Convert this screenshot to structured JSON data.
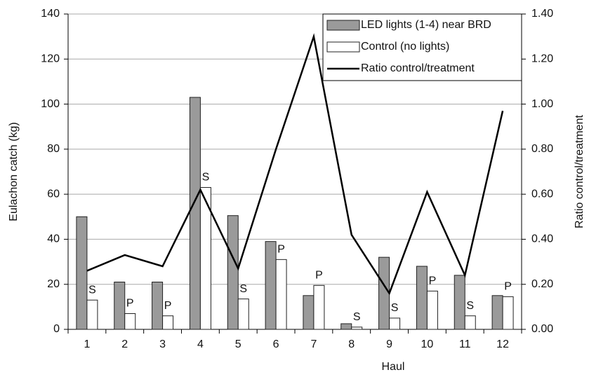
{
  "chart_data": {
    "type": "bar",
    "x_label": "Haul",
    "y_label": "Eulachon catch (kg)",
    "y2_label": "Ratio control/treatment",
    "categories": [
      "1",
      "2",
      "3",
      "4",
      "5",
      "6",
      "7",
      "8",
      "9",
      "10",
      "11",
      "12"
    ],
    "series": [
      {
        "name": "LED lights (1-4) near BRD",
        "type": "bar",
        "color": "#9a9a9a",
        "values": [
          50,
          21,
          21,
          103,
          50.5,
          39,
          15,
          2.5,
          32,
          28,
          24,
          15
        ]
      },
      {
        "name": "Control (no lights)",
        "type": "bar",
        "color": "#ffffff",
        "values": [
          13,
          7,
          6,
          63,
          13.5,
          31,
          19.5,
          1,
          5,
          17,
          6,
          14.5
        ],
        "annotations": [
          "S",
          "P",
          "P",
          "S",
          "S",
          "P",
          "P",
          "S",
          "S",
          "P",
          "S",
          "P"
        ]
      },
      {
        "name": "Ratio control/treatment",
        "type": "line",
        "axis": "y2",
        "color": "#000000",
        "values": [
          0.26,
          0.33,
          0.28,
          0.62,
          0.27,
          0.8,
          1.3,
          0.42,
          0.16,
          0.61,
          0.24,
          0.97
        ]
      }
    ],
    "ylim": [
      0,
      140
    ],
    "yticks": [
      0,
      20,
      40,
      60,
      80,
      100,
      120,
      140
    ],
    "y2lim": [
      0,
      1.4
    ],
    "y2ticks": [
      {
        "value": 0,
        "label": "0.00"
      },
      {
        "value": 0.2,
        "label": "0.20"
      },
      {
        "value": 0.4,
        "label": "0.40"
      },
      {
        "value": 0.6,
        "label": "0.60"
      },
      {
        "value": 0.8,
        "label": "0.80"
      },
      {
        "value": 1,
        "label": "1.00"
      },
      {
        "value": 1.2,
        "label": "1.20"
      },
      {
        "value": 1.4,
        "label": "1.40"
      }
    ],
    "grid": true,
    "legend": "top-right"
  }
}
